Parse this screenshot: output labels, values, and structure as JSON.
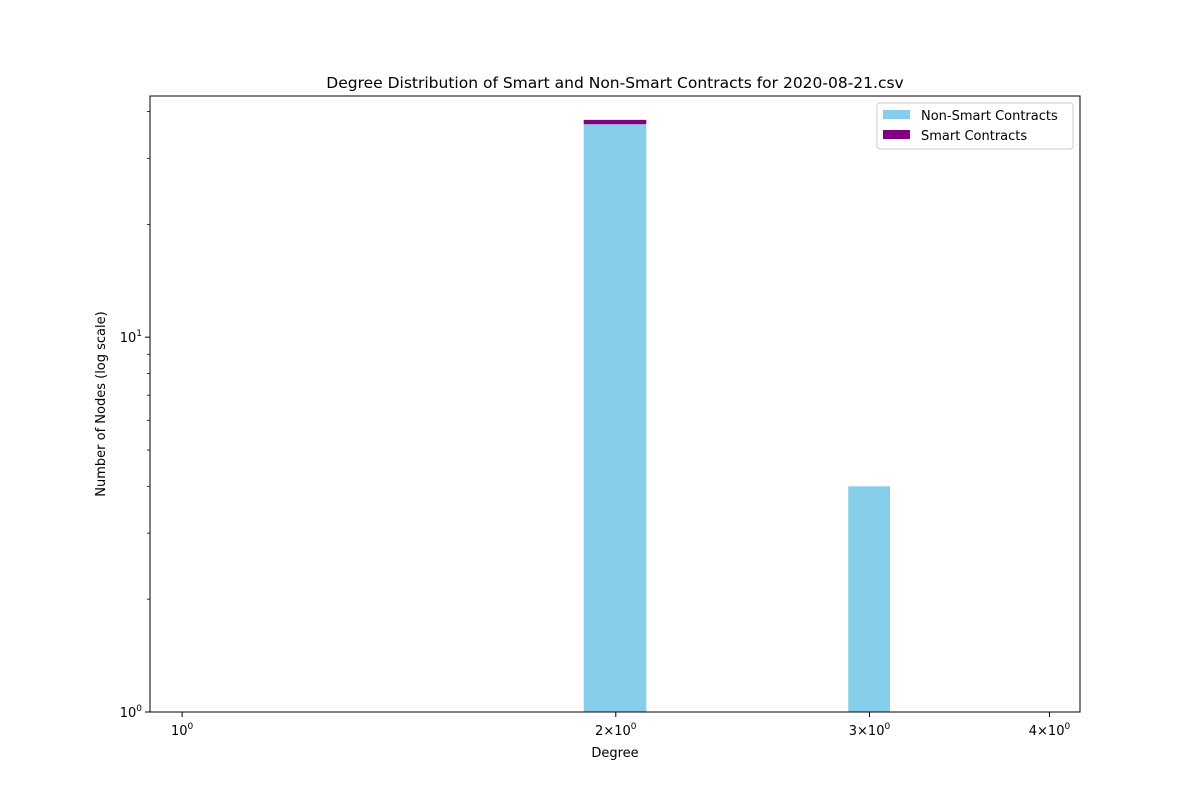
{
  "chart_data": {
    "type": "bar",
    "stacked": true,
    "title": "Degree Distribution of Smart and Non-Smart Contracts for 2020-08-21.csv",
    "xlabel": "Degree",
    "ylabel": "Number of Nodes (log scale)",
    "xscale": "log",
    "yscale": "log",
    "xlim": [
      0.95,
      4.2
    ],
    "ylim": [
      1,
      44
    ],
    "x_ticks": [
      {
        "value": 1,
        "base": "10",
        "exp": "0"
      },
      {
        "value": 2,
        "coef": "2",
        "base": "10",
        "exp": "0"
      },
      {
        "value": 3,
        "coef": "3",
        "base": "10",
        "exp": "0"
      },
      {
        "value": 4,
        "coef": "4",
        "base": "10",
        "exp": "0"
      }
    ],
    "y_ticks": [
      {
        "value": 1,
        "base": "10",
        "exp": "0"
      },
      {
        "value": 10,
        "base": "10",
        "exp": "1"
      }
    ],
    "y_minor_ticks": [
      2,
      3,
      4,
      5,
      6,
      7,
      8,
      9,
      20,
      30,
      40
    ],
    "grid": false,
    "legend_position": "top-right",
    "bins": [
      {
        "x_start": 1.9,
        "x_end": 2.1
      },
      {
        "x_start": 2.9,
        "x_end": 3.1
      }
    ],
    "series": [
      {
        "name": "Non-Smart Contracts",
        "color": "#87ceeb",
        "values": [
          37,
          4
        ]
      },
      {
        "name": "Smart Contracts",
        "color": "#800080",
        "values": [
          1,
          0
        ]
      }
    ]
  }
}
